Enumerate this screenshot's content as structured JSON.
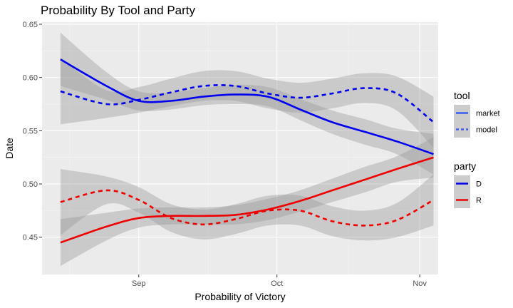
{
  "chart_data": {
    "type": "line",
    "title": "Probability By Tool and Party",
    "xlabel": "Probability of Victory",
    "ylabel": "Date",
    "x_ticks": [
      "Sep",
      "Oct",
      "Nov"
    ],
    "x_tick_values": [
      "2016-09-01",
      "2016-10-01",
      "2016-11-01"
    ],
    "xlim": [
      "2016-08-11",
      "2016-11-05"
    ],
    "y_ticks": [
      "0.45",
      "0.50",
      "0.55",
      "0.60",
      "0.65"
    ],
    "y_tick_values": [
      0.45,
      0.5,
      0.55,
      0.6,
      0.65
    ],
    "ylim": [
      0.415,
      0.652
    ],
    "grid": true,
    "legend_position": "right",
    "legends": [
      {
        "title": "tool",
        "entries": [
          {
            "label": "market",
            "linetype": "solid",
            "color": "#3d5cf0"
          },
          {
            "label": "model",
            "linetype": "dashed",
            "color": "#3d5cf0"
          }
        ]
      },
      {
        "title": "party",
        "entries": [
          {
            "label": "D",
            "linetype": "solid",
            "color": "#0000ee"
          },
          {
            "label": "R",
            "linetype": "solid",
            "color": "#ee0000"
          }
        ]
      }
    ],
    "series": [
      {
        "party": "D",
        "tool": "market",
        "color": "#0000ee",
        "linetype": "solid",
        "x": [
          "2016-08-15",
          "2016-08-25",
          "2016-09-01",
          "2016-09-08",
          "2016-09-15",
          "2016-09-22",
          "2016-09-29",
          "2016-10-06",
          "2016-10-13",
          "2016-10-20",
          "2016-10-27",
          "2016-11-04"
        ],
        "y": [
          0.617,
          0.592,
          0.578,
          0.578,
          0.582,
          0.584,
          0.582,
          0.57,
          0.558,
          0.549,
          0.54,
          0.528
        ],
        "band": {
          "upper": [
            0.642,
            0.605,
            0.587,
            0.586,
            0.59,
            0.593,
            0.591,
            0.58,
            0.569,
            0.561,
            0.552,
            0.547
          ],
          "lower": [
            0.592,
            0.579,
            0.569,
            0.57,
            0.574,
            0.575,
            0.573,
            0.56,
            0.547,
            0.537,
            0.528,
            0.509
          ]
        }
      },
      {
        "party": "D",
        "tool": "model",
        "color": "#0000ee",
        "linetype": "dashed",
        "x": [
          "2016-08-15",
          "2016-08-25",
          "2016-09-01",
          "2016-09-08",
          "2016-09-15",
          "2016-09-22",
          "2016-09-29",
          "2016-10-06",
          "2016-10-13",
          "2016-10-20",
          "2016-10-27",
          "2016-11-04"
        ],
        "y": [
          0.587,
          0.575,
          0.579,
          0.586,
          0.592,
          0.592,
          0.585,
          0.581,
          0.585,
          0.59,
          0.585,
          0.558
        ],
        "band": {
          "upper": [
            0.618,
            0.588,
            0.591,
            0.599,
            0.606,
            0.606,
            0.599,
            0.595,
            0.599,
            0.604,
            0.601,
            0.582
          ],
          "lower": [
            0.556,
            0.562,
            0.567,
            0.573,
            0.578,
            0.578,
            0.571,
            0.567,
            0.571,
            0.576,
            0.569,
            0.534
          ]
        }
      },
      {
        "party": "R",
        "tool": "market",
        "color": "#ee0000",
        "linetype": "solid",
        "x": [
          "2016-08-15",
          "2016-08-25",
          "2016-09-01",
          "2016-09-08",
          "2016-09-15",
          "2016-09-22",
          "2016-09-29",
          "2016-10-06",
          "2016-10-13",
          "2016-10-20",
          "2016-10-27",
          "2016-11-04"
        ],
        "y": [
          0.445,
          0.46,
          0.468,
          0.47,
          0.47,
          0.471,
          0.476,
          0.484,
          0.494,
          0.504,
          0.514,
          0.525
        ],
        "band": {
          "upper": [
            0.467,
            0.473,
            0.477,
            0.478,
            0.478,
            0.48,
            0.486,
            0.494,
            0.505,
            0.516,
            0.526,
            0.544
          ],
          "lower": [
            0.423,
            0.447,
            0.459,
            0.462,
            0.462,
            0.462,
            0.466,
            0.474,
            0.483,
            0.492,
            0.502,
            0.506
          ]
        }
      },
      {
        "party": "R",
        "tool": "model",
        "color": "#ee0000",
        "linetype": "dashed",
        "x": [
          "2016-08-15",
          "2016-08-25",
          "2016-09-01",
          "2016-09-08",
          "2016-09-15",
          "2016-09-22",
          "2016-09-29",
          "2016-10-06",
          "2016-10-13",
          "2016-10-20",
          "2016-10-27",
          "2016-11-04"
        ],
        "y": [
          0.483,
          0.494,
          0.485,
          0.468,
          0.462,
          0.467,
          0.475,
          0.475,
          0.465,
          0.461,
          0.466,
          0.485
        ],
        "band": {
          "upper": [
            0.514,
            0.507,
            0.497,
            0.481,
            0.476,
            0.481,
            0.489,
            0.489,
            0.479,
            0.475,
            0.482,
            0.509
          ],
          "lower": [
            0.452,
            0.481,
            0.473,
            0.455,
            0.448,
            0.453,
            0.461,
            0.461,
            0.451,
            0.447,
            0.45,
            0.461
          ]
        }
      }
    ]
  }
}
